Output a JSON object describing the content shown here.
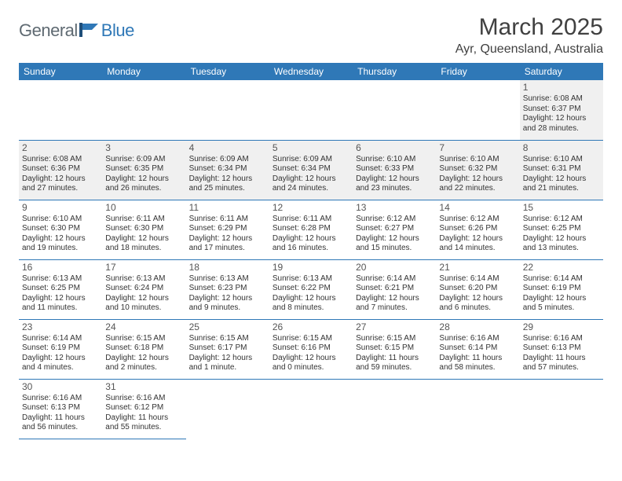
{
  "logo": {
    "word1": "General",
    "word2": "Blue"
  },
  "title": "March 2025",
  "location": "Ayr, Queensland, Australia",
  "colors": {
    "header_bg": "#2f78b7",
    "header_text": "#ffffff",
    "shaded_bg": "#f0f0f0",
    "border": "#2f78b7",
    "logo_gray": "#5f6a72",
    "logo_blue": "#2f78b7"
  },
  "day_headers": [
    "Sunday",
    "Monday",
    "Tuesday",
    "Wednesday",
    "Thursday",
    "Friday",
    "Saturday"
  ],
  "weeks": [
    [
      {
        "empty": true
      },
      {
        "empty": true
      },
      {
        "empty": true
      },
      {
        "empty": true
      },
      {
        "empty": true
      },
      {
        "empty": true
      },
      {
        "day": "1",
        "shaded": true,
        "sunrise": "Sunrise: 6:08 AM",
        "sunset": "Sunset: 6:37 PM",
        "daylight1": "Daylight: 12 hours",
        "daylight2": "and 28 minutes."
      }
    ],
    [
      {
        "day": "2",
        "shaded": true,
        "sunrise": "Sunrise: 6:08 AM",
        "sunset": "Sunset: 6:36 PM",
        "daylight1": "Daylight: 12 hours",
        "daylight2": "and 27 minutes."
      },
      {
        "day": "3",
        "shaded": true,
        "sunrise": "Sunrise: 6:09 AM",
        "sunset": "Sunset: 6:35 PM",
        "daylight1": "Daylight: 12 hours",
        "daylight2": "and 26 minutes."
      },
      {
        "day": "4",
        "shaded": true,
        "sunrise": "Sunrise: 6:09 AM",
        "sunset": "Sunset: 6:34 PM",
        "daylight1": "Daylight: 12 hours",
        "daylight2": "and 25 minutes."
      },
      {
        "day": "5",
        "shaded": true,
        "sunrise": "Sunrise: 6:09 AM",
        "sunset": "Sunset: 6:34 PM",
        "daylight1": "Daylight: 12 hours",
        "daylight2": "and 24 minutes."
      },
      {
        "day": "6",
        "shaded": true,
        "sunrise": "Sunrise: 6:10 AM",
        "sunset": "Sunset: 6:33 PM",
        "daylight1": "Daylight: 12 hours",
        "daylight2": "and 23 minutes."
      },
      {
        "day": "7",
        "shaded": true,
        "sunrise": "Sunrise: 6:10 AM",
        "sunset": "Sunset: 6:32 PM",
        "daylight1": "Daylight: 12 hours",
        "daylight2": "and 22 minutes."
      },
      {
        "day": "8",
        "shaded": true,
        "sunrise": "Sunrise: 6:10 AM",
        "sunset": "Sunset: 6:31 PM",
        "daylight1": "Daylight: 12 hours",
        "daylight2": "and 21 minutes."
      }
    ],
    [
      {
        "day": "9",
        "sunrise": "Sunrise: 6:10 AM",
        "sunset": "Sunset: 6:30 PM",
        "daylight1": "Daylight: 12 hours",
        "daylight2": "and 19 minutes."
      },
      {
        "day": "10",
        "sunrise": "Sunrise: 6:11 AM",
        "sunset": "Sunset: 6:30 PM",
        "daylight1": "Daylight: 12 hours",
        "daylight2": "and 18 minutes."
      },
      {
        "day": "11",
        "sunrise": "Sunrise: 6:11 AM",
        "sunset": "Sunset: 6:29 PM",
        "daylight1": "Daylight: 12 hours",
        "daylight2": "and 17 minutes."
      },
      {
        "day": "12",
        "sunrise": "Sunrise: 6:11 AM",
        "sunset": "Sunset: 6:28 PM",
        "daylight1": "Daylight: 12 hours",
        "daylight2": "and 16 minutes."
      },
      {
        "day": "13",
        "sunrise": "Sunrise: 6:12 AM",
        "sunset": "Sunset: 6:27 PM",
        "daylight1": "Daylight: 12 hours",
        "daylight2": "and 15 minutes."
      },
      {
        "day": "14",
        "sunrise": "Sunrise: 6:12 AM",
        "sunset": "Sunset: 6:26 PM",
        "daylight1": "Daylight: 12 hours",
        "daylight2": "and 14 minutes."
      },
      {
        "day": "15",
        "sunrise": "Sunrise: 6:12 AM",
        "sunset": "Sunset: 6:25 PM",
        "daylight1": "Daylight: 12 hours",
        "daylight2": "and 13 minutes."
      }
    ],
    [
      {
        "day": "16",
        "sunrise": "Sunrise: 6:13 AM",
        "sunset": "Sunset: 6:25 PM",
        "daylight1": "Daylight: 12 hours",
        "daylight2": "and 11 minutes."
      },
      {
        "day": "17",
        "sunrise": "Sunrise: 6:13 AM",
        "sunset": "Sunset: 6:24 PM",
        "daylight1": "Daylight: 12 hours",
        "daylight2": "and 10 minutes."
      },
      {
        "day": "18",
        "sunrise": "Sunrise: 6:13 AM",
        "sunset": "Sunset: 6:23 PM",
        "daylight1": "Daylight: 12 hours",
        "daylight2": "and 9 minutes."
      },
      {
        "day": "19",
        "sunrise": "Sunrise: 6:13 AM",
        "sunset": "Sunset: 6:22 PM",
        "daylight1": "Daylight: 12 hours",
        "daylight2": "and 8 minutes."
      },
      {
        "day": "20",
        "sunrise": "Sunrise: 6:14 AM",
        "sunset": "Sunset: 6:21 PM",
        "daylight1": "Daylight: 12 hours",
        "daylight2": "and 7 minutes."
      },
      {
        "day": "21",
        "sunrise": "Sunrise: 6:14 AM",
        "sunset": "Sunset: 6:20 PM",
        "daylight1": "Daylight: 12 hours",
        "daylight2": "and 6 minutes."
      },
      {
        "day": "22",
        "sunrise": "Sunrise: 6:14 AM",
        "sunset": "Sunset: 6:19 PM",
        "daylight1": "Daylight: 12 hours",
        "daylight2": "and 5 minutes."
      }
    ],
    [
      {
        "day": "23",
        "sunrise": "Sunrise: 6:14 AM",
        "sunset": "Sunset: 6:19 PM",
        "daylight1": "Daylight: 12 hours",
        "daylight2": "and 4 minutes."
      },
      {
        "day": "24",
        "sunrise": "Sunrise: 6:15 AM",
        "sunset": "Sunset: 6:18 PM",
        "daylight1": "Daylight: 12 hours",
        "daylight2": "and 2 minutes."
      },
      {
        "day": "25",
        "sunrise": "Sunrise: 6:15 AM",
        "sunset": "Sunset: 6:17 PM",
        "daylight1": "Daylight: 12 hours",
        "daylight2": "and 1 minute."
      },
      {
        "day": "26",
        "sunrise": "Sunrise: 6:15 AM",
        "sunset": "Sunset: 6:16 PM",
        "daylight1": "Daylight: 12 hours",
        "daylight2": "and 0 minutes."
      },
      {
        "day": "27",
        "sunrise": "Sunrise: 6:15 AM",
        "sunset": "Sunset: 6:15 PM",
        "daylight1": "Daylight: 11 hours",
        "daylight2": "and 59 minutes."
      },
      {
        "day": "28",
        "sunrise": "Sunrise: 6:16 AM",
        "sunset": "Sunset: 6:14 PM",
        "daylight1": "Daylight: 11 hours",
        "daylight2": "and 58 minutes."
      },
      {
        "day": "29",
        "sunrise": "Sunrise: 6:16 AM",
        "sunset": "Sunset: 6:13 PM",
        "daylight1": "Daylight: 11 hours",
        "daylight2": "and 57 minutes."
      }
    ],
    [
      {
        "day": "30",
        "sunrise": "Sunrise: 6:16 AM",
        "sunset": "Sunset: 6:13 PM",
        "daylight1": "Daylight: 11 hours",
        "daylight2": "and 56 minutes."
      },
      {
        "day": "31",
        "sunrise": "Sunrise: 6:16 AM",
        "sunset": "Sunset: 6:12 PM",
        "daylight1": "Daylight: 11 hours",
        "daylight2": "and 55 minutes."
      },
      {
        "empty": true,
        "noborder": true
      },
      {
        "empty": true,
        "noborder": true
      },
      {
        "empty": true,
        "noborder": true
      },
      {
        "empty": true,
        "noborder": true
      },
      {
        "empty": true,
        "noborder": true
      }
    ]
  ]
}
